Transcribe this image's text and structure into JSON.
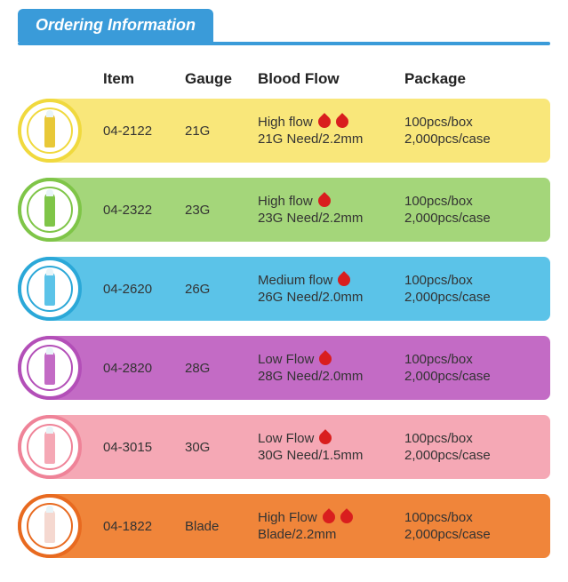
{
  "header": "Ordering Information",
  "columns": {
    "item": "Item",
    "gauge": "Gauge",
    "flow": "Blood Flow",
    "package": "Package"
  },
  "rows": [
    {
      "item": "04-2122",
      "gauge": "21G",
      "flow1": "High flow",
      "flow2": "21G Need/2.2mm",
      "drops": 2,
      "pkg1": "100pcs/box",
      "pkg2": "2,000pcs/case",
      "row_bg": "#f9e77a",
      "ring_border": "#f0d93e",
      "lancet_color": "#e8c838"
    },
    {
      "item": "04-2322",
      "gauge": "23G",
      "flow1": "High flow",
      "flow2": "23G Need/2.2mm",
      "drops": 1,
      "pkg1": "100pcs/box",
      "pkg2": "2,000pcs/case",
      "row_bg": "#a4d67a",
      "ring_border": "#7fc548",
      "lancet_color": "#7fc548"
    },
    {
      "item": "04-2620",
      "gauge": "26G",
      "flow1": "Medium flow",
      "flow2": "26G Need/2.0mm",
      "drops": 1,
      "pkg1": "100pcs/box",
      "pkg2": "2,000pcs/case",
      "row_bg": "#5bc3e8",
      "ring_border": "#2ba8d8",
      "lancet_color": "#5bc3e8"
    },
    {
      "item": "04-2820",
      "gauge": "28G",
      "flow1": "Low Flow",
      "flow2": "28G Need/2.0mm",
      "drops": 1,
      "pkg1": "100pcs/box",
      "pkg2": "2,000pcs/case",
      "row_bg": "#c36bc5",
      "ring_border": "#b34fb8",
      "lancet_color": "#c36bc5"
    },
    {
      "item": "04-3015",
      "gauge": "30G",
      "flow1": "Low Flow",
      "flow2": "30G Need/1.5mm",
      "drops": 1,
      "pkg1": "100pcs/box",
      "pkg2": "2,000pcs/case",
      "row_bg": "#f5a8b5",
      "ring_border": "#ef8398",
      "lancet_color": "#f5a8b5"
    },
    {
      "item": "04-1822",
      "gauge": "Blade",
      "flow1": "High Flow",
      "flow2": "Blade/2.2mm",
      "drops": 2,
      "pkg1": "100pcs/box",
      "pkg2": "2,000pcs/case",
      "row_bg": "#f0853a",
      "ring_border": "#e86a20",
      "lancet_color": "#f5d8d0"
    }
  ]
}
